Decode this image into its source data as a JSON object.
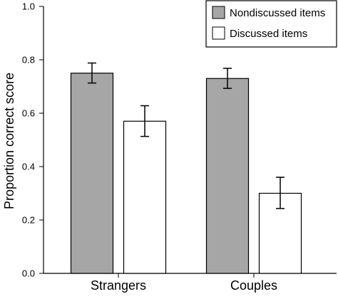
{
  "chart_data": {
    "type": "bar",
    "title": "",
    "xlabel": "",
    "ylabel": "Proportion correct score",
    "ylim": [
      0,
      1.0
    ],
    "yticks": [
      "0.0",
      "0.2",
      "0.4",
      "0.6",
      "0.8",
      "1.0"
    ],
    "grid": false,
    "legend_position": "top-right",
    "categories": [
      "Strangers",
      "Couples"
    ],
    "series": [
      {
        "name": "Nondiscussed items",
        "color": "#a6a6a6",
        "values": [
          0.75,
          0.73
        ],
        "error_low": [
          0.713,
          0.693
        ],
        "error_high": [
          0.788,
          0.768
        ]
      },
      {
        "name": "Discussed items",
        "color": "#ffffff",
        "values": [
          0.57,
          0.3
        ],
        "error_low": [
          0.513,
          0.243
        ],
        "error_high": [
          0.628,
          0.36
        ]
      }
    ]
  }
}
